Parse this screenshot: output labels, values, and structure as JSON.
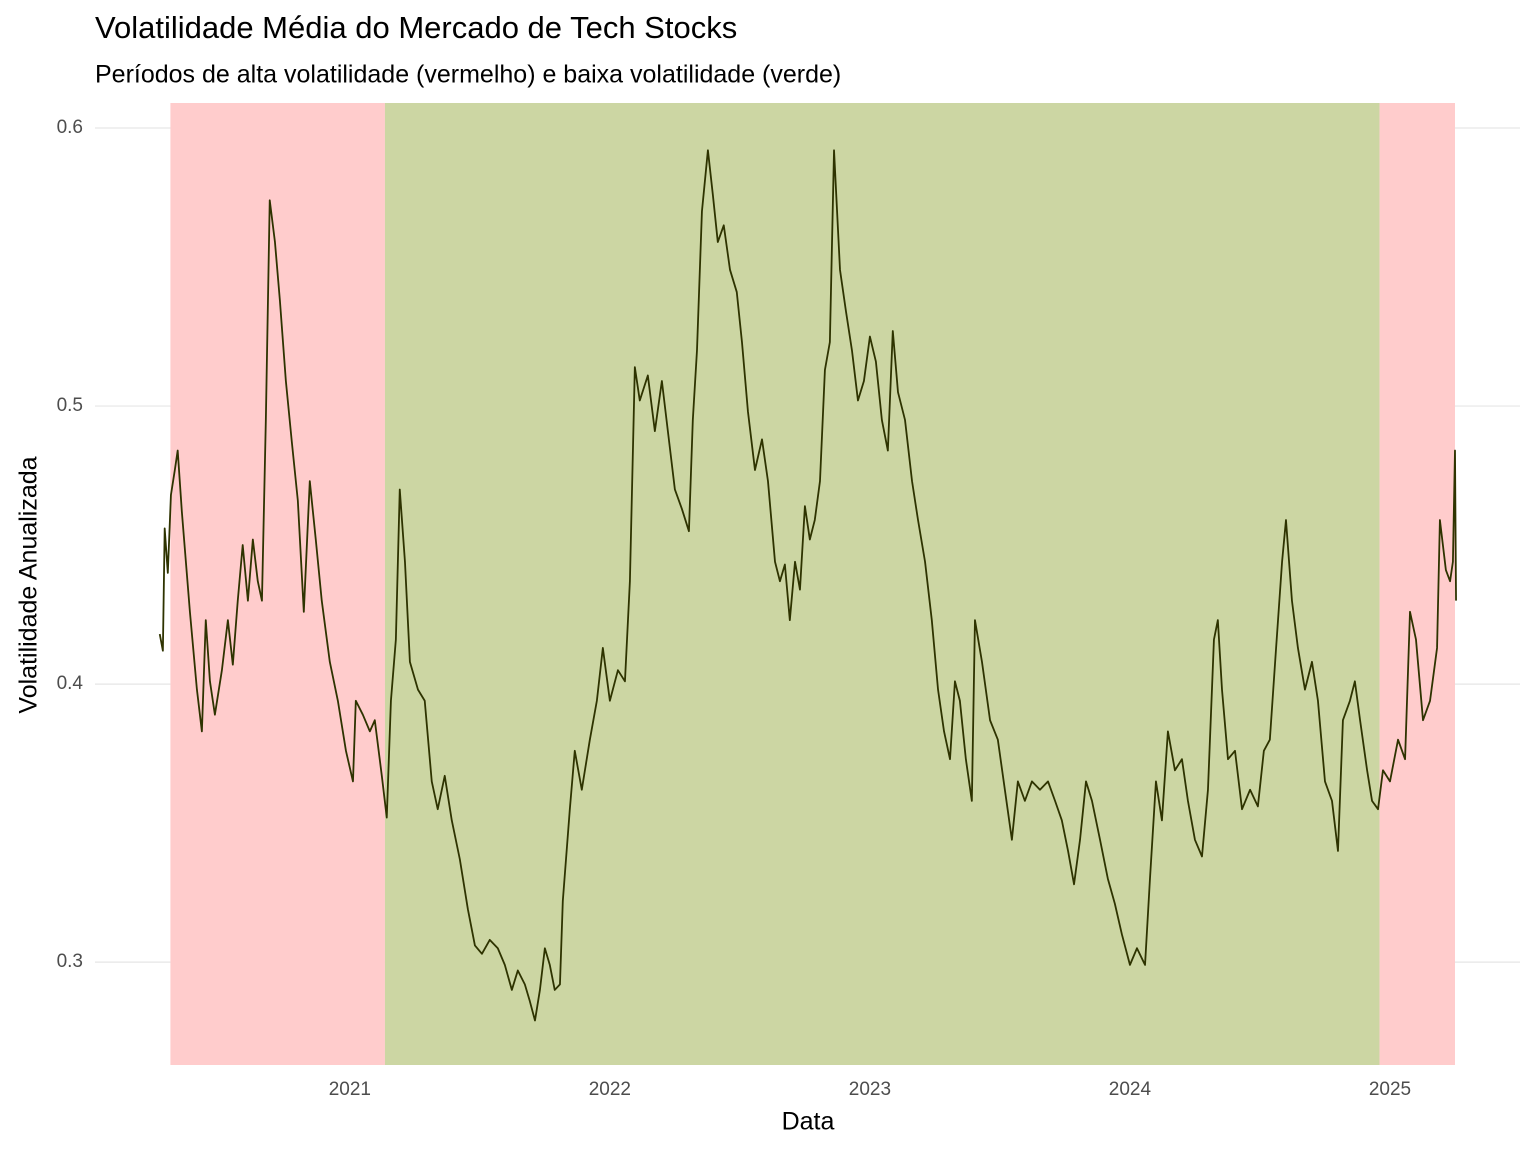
{
  "chart_data": {
    "type": "line",
    "title": "Volatilidade Média do Mercado de Tech Stocks",
    "subtitle": "Períodos de alta volatilidade (vermelho) e baixa volatilidade (verde)",
    "x_label": "Data",
    "y_label": "Volatilidade Anualizada",
    "xlim": [
      2020.02,
      2025.5
    ],
    "xticks": [
      2021,
      2022,
      2023,
      2024,
      2025
    ],
    "ylim": [
      0.263,
      0.609
    ],
    "yticks": [
      0.3,
      0.4,
      0.5,
      0.6
    ],
    "grid": true,
    "color": "#2e3300",
    "regions": [
      {
        "start": 2020.31,
        "end": 2021.135,
        "color": "#ffcccc"
      },
      {
        "start": 2021.135,
        "end": 2024.96,
        "color": "#ccd6a3"
      },
      {
        "start": 2024.96,
        "end": 2025.25,
        "color": "#ffcccc"
      }
    ],
    "x": [
      2020.269,
      2020.281,
      2020.288,
      2020.3,
      2020.312,
      2020.327,
      2020.338,
      2020.354,
      2020.385,
      2020.412,
      2020.431,
      2020.446,
      2020.462,
      2020.481,
      2020.508,
      2020.531,
      2020.55,
      2020.569,
      2020.588,
      2020.608,
      2020.627,
      2020.646,
      2020.662,
      2020.677,
      2020.692,
      2020.712,
      2020.731,
      2020.754,
      2020.777,
      2020.8,
      2020.823,
      2020.846,
      2020.869,
      2020.892,
      2020.923,
      2020.954,
      2020.985,
      2021.012,
      2021.023,
      2021.05,
      2021.077,
      2021.096,
      2021.123,
      2021.142,
      2021.158,
      2021.177,
      2021.192,
      2021.212,
      2021.231,
      2021.262,
      2021.288,
      2021.315,
      2021.338,
      2021.365,
      2021.392,
      2021.423,
      2021.454,
      2021.481,
      2021.508,
      2021.538,
      2021.569,
      2021.596,
      2021.623,
      2021.646,
      2021.673,
      2021.692,
      2021.712,
      2021.731,
      2021.75,
      2021.769,
      2021.788,
      2021.808,
      2021.819,
      2021.846,
      2021.865,
      2021.892,
      2021.923,
      2021.95,
      2021.973,
      2022.0,
      2022.031,
      2022.058,
      2022.077,
      2022.096,
      2022.115,
      2022.146,
      2022.173,
      2022.2,
      2022.223,
      2022.25,
      2022.277,
      2022.304,
      2022.319,
      2022.335,
      2022.354,
      2022.377,
      2022.396,
      2022.415,
      2022.438,
      2022.462,
      2022.488,
      2022.508,
      2022.531,
      2022.558,
      2022.585,
      2022.608,
      2022.635,
      2022.654,
      2022.673,
      2022.692,
      2022.712,
      2022.731,
      2022.75,
      2022.769,
      2022.788,
      2022.808,
      2022.827,
      2022.846,
      2022.862,
      2022.885,
      2022.908,
      2022.931,
      2022.954,
      2022.977,
      2023.0,
      2023.023,
      2023.046,
      2023.069,
      2023.088,
      2023.108,
      2023.135,
      2023.162,
      2023.185,
      2023.212,
      2023.238,
      2023.262,
      2023.285,
      2023.308,
      2023.327,
      2023.346,
      2023.369,
      2023.392,
      2023.404,
      2023.431,
      2023.462,
      2023.492,
      2023.519,
      2023.546,
      2023.569,
      2023.596,
      2023.623,
      2023.654,
      2023.685,
      2023.712,
      2023.738,
      2023.762,
      2023.785,
      2023.808,
      2023.831,
      2023.854,
      2023.885,
      2023.915,
      2023.942,
      2023.969,
      2024.0,
      2024.027,
      2024.058,
      2024.077,
      2024.1,
      2024.123,
      2024.146,
      2024.173,
      2024.2,
      2024.223,
      2024.25,
      2024.277,
      2024.3,
      2024.323,
      2024.338,
      2024.354,
      2024.377,
      2024.404,
      2024.431,
      2024.462,
      2024.492,
      2024.515,
      2024.538,
      2024.562,
      2024.585,
      2024.6,
      2024.623,
      2024.646,
      2024.673,
      2024.7,
      2024.723,
      2024.75,
      2024.777,
      2024.8,
      2024.819,
      2024.846,
      2024.865,
      2024.885,
      2024.912,
      2024.931,
      2024.954,
      2024.973,
      2025.0,
      2025.031,
      2025.058,
      2025.077,
      2025.1,
      2025.127,
      2025.154,
      2025.181,
      2025.192,
      2025.215,
      2025.231,
      2025.242,
      2025.25,
      2025.254
    ],
    "values": [
      0.418,
      0.412,
      0.456,
      0.44,
      0.468,
      0.477,
      0.484,
      0.462,
      0.426,
      0.398,
      0.383,
      0.423,
      0.401,
      0.389,
      0.405,
      0.423,
      0.407,
      0.43,
      0.45,
      0.43,
      0.452,
      0.437,
      0.43,
      0.495,
      0.574,
      0.559,
      0.538,
      0.509,
      0.487,
      0.466,
      0.426,
      0.473,
      0.452,
      0.43,
      0.408,
      0.394,
      0.376,
      0.365,
      0.394,
      0.389,
      0.383,
      0.387,
      0.367,
      0.352,
      0.394,
      0.416,
      0.47,
      0.444,
      0.408,
      0.398,
      0.394,
      0.365,
      0.355,
      0.367,
      0.351,
      0.337,
      0.319,
      0.306,
      0.303,
      0.308,
      0.305,
      0.299,
      0.29,
      0.297,
      0.292,
      0.286,
      0.279,
      0.29,
      0.305,
      0.299,
      0.29,
      0.292,
      0.322,
      0.355,
      0.376,
      0.362,
      0.38,
      0.394,
      0.413,
      0.394,
      0.405,
      0.401,
      0.437,
      0.514,
      0.502,
      0.511,
      0.491,
      0.509,
      0.491,
      0.47,
      0.463,
      0.455,
      0.495,
      0.52,
      0.57,
      0.592,
      0.576,
      0.559,
      0.565,
      0.549,
      0.541,
      0.523,
      0.498,
      0.477,
      0.488,
      0.473,
      0.444,
      0.437,
      0.443,
      0.423,
      0.444,
      0.434,
      0.464,
      0.452,
      0.459,
      0.473,
      0.513,
      0.523,
      0.592,
      0.549,
      0.534,
      0.52,
      0.502,
      0.509,
      0.525,
      0.516,
      0.495,
      0.484,
      0.527,
      0.505,
      0.495,
      0.473,
      0.459,
      0.444,
      0.423,
      0.398,
      0.383,
      0.373,
      0.401,
      0.394,
      0.373,
      0.358,
      0.423,
      0.408,
      0.387,
      0.38,
      0.362,
      0.344,
      0.365,
      0.358,
      0.365,
      0.362,
      0.365,
      0.358,
      0.351,
      0.34,
      0.328,
      0.344,
      0.365,
      0.358,
      0.344,
      0.33,
      0.321,
      0.31,
      0.299,
      0.305,
      0.299,
      0.33,
      0.365,
      0.351,
      0.383,
      0.369,
      0.373,
      0.358,
      0.344,
      0.338,
      0.362,
      0.416,
      0.423,
      0.398,
      0.373,
      0.376,
      0.355,
      0.362,
      0.356,
      0.376,
      0.38,
      0.413,
      0.444,
      0.459,
      0.43,
      0.413,
      0.398,
      0.408,
      0.394,
      0.365,
      0.358,
      0.34,
      0.387,
      0.394,
      0.401,
      0.387,
      0.369,
      0.358,
      0.355,
      0.369,
      0.365,
      0.38,
      0.373,
      0.426,
      0.416,
      0.387,
      0.394,
      0.413,
      0.459,
      0.441,
      0.437,
      0.444,
      0.484,
      0.43
    ]
  }
}
